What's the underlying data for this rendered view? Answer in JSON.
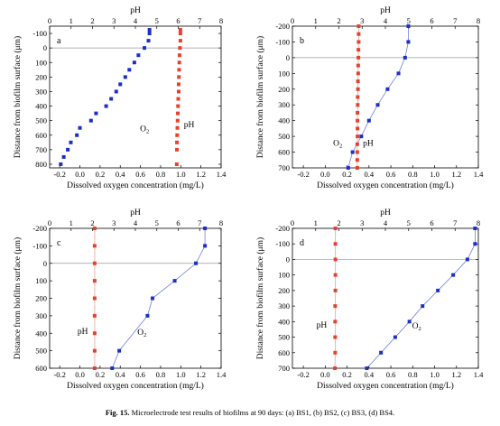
{
  "caption": {
    "label": "Fig. 15.",
    "text": "Microelectrode test results of biofilms at 90 days: (a) BS1, (b) BS2, (c) BS3, (d) BS4."
  },
  "colors": {
    "o2": "#1a2fc8",
    "ph": "#e8402c",
    "o2_line": "#6f7fe0",
    "ph_line": "#f2a298",
    "zero_line": "#999999"
  },
  "chart_data": [
    {
      "panel": "a",
      "type": "scatter",
      "xlabel": "Dissolved oxygen concentration (mg/L)",
      "ylabel": "Distance from biofilm surface (μm)",
      "top_xlabel": "pH",
      "xlim": [
        -0.3,
        1.4
      ],
      "xticks": [
        "-0.2",
        "0.0",
        "0.2",
        "0.4",
        "0.6",
        "0.8",
        "1.0",
        "1.2",
        "1.4"
      ],
      "top_xlim": [
        0,
        8
      ],
      "top_xticks": [
        "0",
        "1",
        "2",
        "3",
        "4",
        "5",
        "6",
        "7",
        "8"
      ],
      "ylim": [
        -150,
        825
      ],
      "yticks": [
        "-100",
        "0",
        "100",
        "200",
        "300",
        "400",
        "500",
        "600",
        "700",
        "800"
      ],
      "reference_line_y": 0,
      "series": [
        {
          "name": "O₂",
          "axis": "bottom",
          "marker": "square",
          "line": false,
          "x": [
            0.69,
            0.69,
            0.68,
            0.64,
            0.58,
            0.54,
            0.49,
            0.45,
            0.4,
            0.36,
            0.31,
            0.26,
            0.16,
            0.11,
            0.0,
            -0.03,
            -0.09,
            -0.12,
            -0.16,
            -0.19
          ],
          "y": [
            -125,
            -100,
            -50,
            0,
            50,
            100,
            150,
            200,
            250,
            300,
            350,
            400,
            450,
            500,
            550,
            600,
            650,
            700,
            750,
            800
          ]
        },
        {
          "name": "pH",
          "axis": "top",
          "marker": "square",
          "line": false,
          "x": [
            6.1,
            6.1,
            6.1,
            6.08,
            6.06,
            6.05,
            6.04,
            6.03,
            6.02,
            6.02,
            6.0,
            5.99,
            5.98,
            5.97,
            5.96,
            5.95,
            5.94,
            5.94,
            5.93
          ],
          "y": [
            -125,
            -100,
            -50,
            0,
            50,
            100,
            150,
            200,
            250,
            300,
            350,
            400,
            450,
            500,
            550,
            600,
            650,
            700,
            800
          ]
        }
      ],
      "annotations": [
        {
          "text": "O",
          "sub": "2",
          "x": 0.9,
          "y": 575,
          "axis": "bottom",
          "dx": -34,
          "dy": 0
        },
        {
          "text": "pH",
          "x": 6.05,
          "y": 545,
          "axis": "top",
          "dx": 5,
          "dy": 0
        }
      ]
    },
    {
      "panel": "b",
      "type": "scatter",
      "xlabel": "Dissolved oxygen concentration (mg/L)",
      "ylabel": "Distance from biofilm surface (μm)",
      "top_xlabel": "pH",
      "xlim": [
        -0.3,
        1.4
      ],
      "xticks": [
        "-0.2",
        "0.0",
        "0.2",
        "0.4",
        "0.6",
        "0.8",
        "1.0",
        "1.2",
        "1.4"
      ],
      "top_xlim": [
        0,
        8
      ],
      "top_xticks": [
        "0",
        "1",
        "2",
        "3",
        "4",
        "5",
        "6",
        "7",
        "8"
      ],
      "ylim": [
        -200,
        700
      ],
      "yticks": [
        "-200",
        "-100",
        "0",
        "100",
        "200",
        "300",
        "400",
        "500",
        "600",
        "700"
      ],
      "reference_line_y": 0,
      "series": [
        {
          "name": "O₂",
          "axis": "bottom",
          "marker": "square",
          "line": true,
          "x": [
            0.76,
            0.76,
            0.73,
            0.67,
            0.57,
            0.48,
            0.4,
            0.33,
            0.25,
            0.21
          ],
          "y": [
            -200,
            -100,
            0,
            100,
            200,
            300,
            400,
            500,
            600,
            700
          ]
        },
        {
          "name": "pH",
          "axis": "top",
          "marker": "square",
          "line": true,
          "x": [
            2.85,
            2.85,
            2.85,
            2.84,
            2.84,
            2.83,
            2.83,
            2.82,
            2.82,
            2.81,
            2.81,
            2.8,
            2.8,
            2.8,
            2.8,
            2.79,
            2.79,
            2.79,
            2.79
          ],
          "y": [
            -200,
            -150,
            -100,
            -50,
            0,
            50,
            100,
            150,
            200,
            250,
            300,
            350,
            400,
            450,
            500,
            550,
            600,
            650,
            700
          ]
        }
      ],
      "annotations": [
        {
          "text": "O",
          "sub": "2",
          "x": 2.8,
          "y": 560,
          "axis": "top",
          "dx": -27,
          "dy": 0
        },
        {
          "text": "pH",
          "x": 2.8,
          "y": 560,
          "axis": "top",
          "dx": 6,
          "dy": 0
        }
      ]
    },
    {
      "panel": "c",
      "type": "scatter",
      "xlabel": "Dissolved oxygen concentration (mg/L)",
      "ylabel": "Distance from biofilm surface (μm)",
      "top_xlabel": "pH",
      "xlim": [
        -0.3,
        1.4
      ],
      "xticks": [
        "-0.2",
        "0.0",
        "0.2",
        "0.4",
        "0.6",
        "0.8",
        "1.0",
        "1.2",
        "1.4"
      ],
      "top_xlim": [
        0,
        8
      ],
      "top_xticks": [
        "0",
        "1",
        "2",
        "3",
        "4",
        "5",
        "6",
        "7",
        "8"
      ],
      "ylim": [
        -200,
        600
      ],
      "yticks": [
        "-200",
        "-100",
        "0",
        "100",
        "200",
        "300",
        "400",
        "500",
        "600"
      ],
      "reference_line_y": 0,
      "series": [
        {
          "name": "O₂",
          "axis": "bottom",
          "marker": "square",
          "line": true,
          "x": [
            1.24,
            1.24,
            1.15,
            0.94,
            0.72,
            0.67,
            0.39,
            0.32
          ],
          "y": [
            -200,
            -100,
            0,
            100,
            200,
            300,
            500,
            600
          ]
        },
        {
          "name": "pH",
          "axis": "top",
          "marker": "square",
          "line": true,
          "x": [
            2.1,
            2.1,
            2.1,
            2.1,
            2.1,
            2.1,
            2.1,
            2.1,
            2.1
          ],
          "y": [
            -200,
            -100,
            0,
            100,
            200,
            300,
            400,
            500,
            600
          ]
        }
      ],
      "annotations": [
        {
          "text": "pH",
          "x": 2.1,
          "y": 405,
          "axis": "top",
          "dx": -19,
          "dy": 0
        },
        {
          "text": "O",
          "sub": "2",
          "x": 0.57,
          "y": 410,
          "axis": "bottom",
          "dx": 0,
          "dy": 0
        }
      ]
    },
    {
      "panel": "d",
      "type": "scatter",
      "xlabel": "Dissolved oxygen concentration (mg/L)",
      "ylabel": "Distance from biofilm surface (μm)",
      "top_xlabel": "pH",
      "xlim": [
        -0.3,
        1.4
      ],
      "xticks": [
        "-0.2",
        "0.0",
        "0.2",
        "0.4",
        "0.6",
        "0.8",
        "1.0",
        "1.2",
        "1.4"
      ],
      "top_xlim": [
        0,
        8
      ],
      "top_xticks": [
        "0",
        "1",
        "2",
        "3",
        "4",
        "5",
        "6",
        "7",
        "8"
      ],
      "ylim": [
        -200,
        700
      ],
      "yticks": [
        "-200",
        "-100",
        "0",
        "100",
        "200",
        "300",
        "400",
        "500",
        "600",
        "700"
      ],
      "reference_line_y": 0,
      "series": [
        {
          "name": "O₂",
          "axis": "bottom",
          "marker": "square",
          "line": true,
          "x": [
            1.37,
            1.37,
            1.3,
            1.17,
            1.03,
            0.89,
            0.77,
            0.64,
            0.51,
            0.38
          ],
          "y": [
            -200,
            -100,
            0,
            100,
            200,
            300,
            400,
            500,
            600,
            700
          ]
        },
        {
          "name": "pH",
          "axis": "top",
          "marker": "square",
          "line": true,
          "x": [
            1.85,
            1.85,
            1.85,
            1.85,
            1.85,
            1.84,
            1.84,
            1.84,
            1.84,
            1.83
          ],
          "y": [
            -200,
            -100,
            0,
            100,
            200,
            300,
            400,
            500,
            600,
            700
          ]
        }
      ],
      "annotations": [
        {
          "text": "pH",
          "x": 1.85,
          "y": 440,
          "axis": "top",
          "dx": -21,
          "dy": 0
        },
        {
          "text": "O",
          "sub": "2",
          "x": 0.77,
          "y": 445,
          "axis": "bottom",
          "dx": 3,
          "dy": 0
        }
      ]
    }
  ]
}
